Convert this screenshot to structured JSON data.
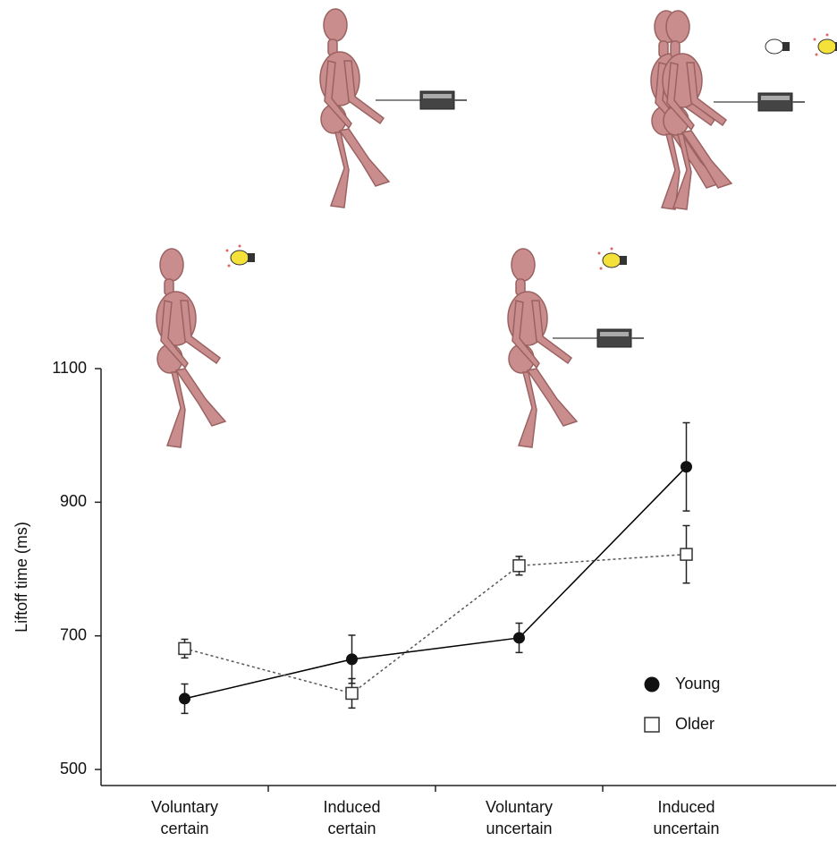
{
  "chart_data": {
    "type": "line",
    "y_label": "Liftoff time (ms)",
    "categories": [
      "Voluntary certain",
      "Induced certain",
      "Voluntary uncertain",
      "Induced uncertain"
    ],
    "series": [
      {
        "name": "Young",
        "color": "#000000",
        "marker": "circle",
        "dashed": false,
        "values": [
          606,
          665,
          697,
          953
        ],
        "errors": [
          22,
          36,
          22,
          66
        ]
      },
      {
        "name": "Older",
        "color": "#555555",
        "marker": "square",
        "dashed": true,
        "values": [
          681,
          614,
          805,
          822
        ],
        "errors": [
          14,
          22,
          14,
          43
        ]
      }
    ],
    "ylim": [
      476,
      1100
    ],
    "yticks": [
      500,
      700,
      900,
      1100
    ],
    "legend": "lower right"
  }
}
